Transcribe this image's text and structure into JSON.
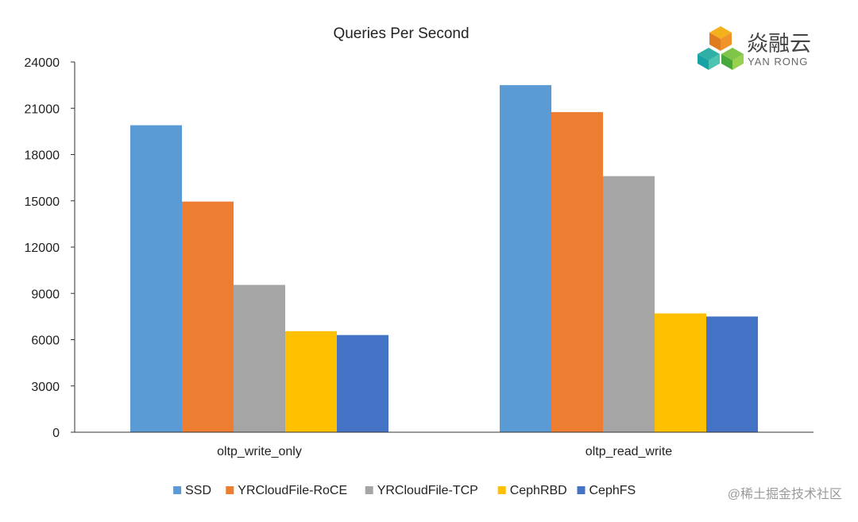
{
  "logo": {
    "name": "焱融云",
    "subtitle": "YAN RONG"
  },
  "watermark": "@稀土掘金技术社区",
  "colors": {
    "SSD": "#5b9bd5",
    "YRCloudFile-RoCE": "#ed7d31",
    "YRCloudFile-TCP": "#a5a5a5",
    "CephRBD": "#ffc000",
    "CephFS": "#4472c4",
    "axis": "#333333",
    "gridline": "#d9d9d9"
  },
  "chart_data": {
    "type": "bar",
    "title": "Queries Per Second",
    "xlabel": "",
    "ylabel": "",
    "categories": [
      "oltp_write_only",
      "oltp_read_write"
    ],
    "series": [
      {
        "name": "SSD",
        "values": [
          19900,
          22500
        ]
      },
      {
        "name": "YRCloudFile-RoCE",
        "values": [
          14950,
          20750
        ]
      },
      {
        "name": "YRCloudFile-TCP",
        "values": [
          9550,
          16600
        ]
      },
      {
        "name": "CephRBD",
        "values": [
          6550,
          7700
        ]
      },
      {
        "name": "CephFS",
        "values": [
          6300,
          7500
        ]
      }
    ],
    "ylim": [
      0,
      24000
    ],
    "yticks": [
      0,
      3000,
      6000,
      9000,
      12000,
      15000,
      18000,
      21000,
      24000
    ],
    "grid": false,
    "legend": "bottom"
  }
}
